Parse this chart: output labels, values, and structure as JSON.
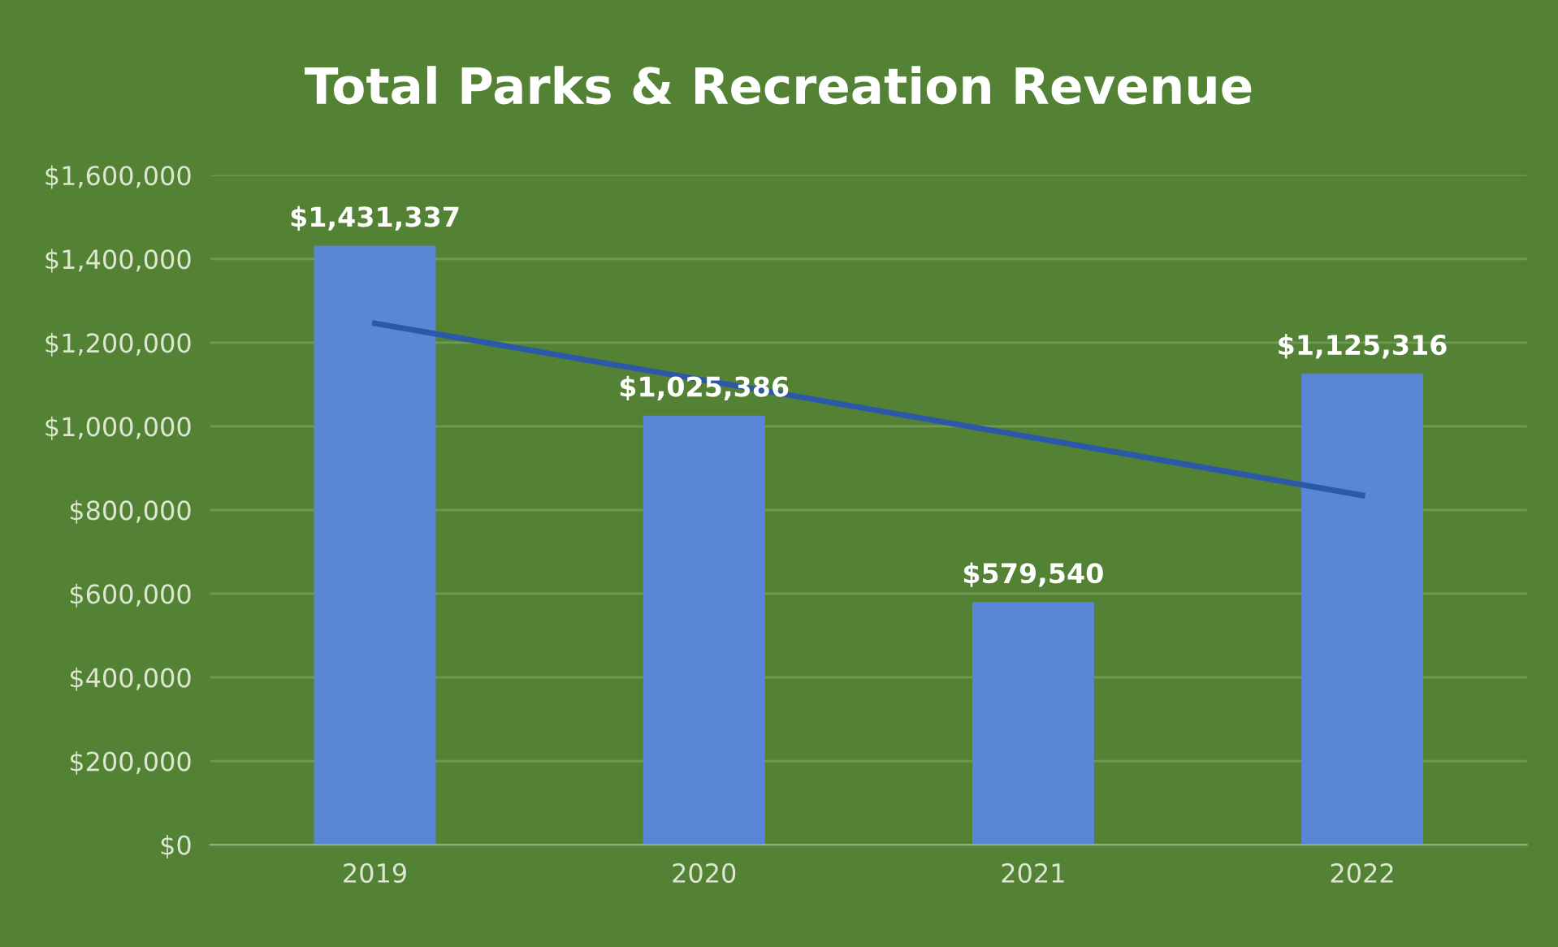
{
  "chart_data": {
    "type": "bar",
    "title": "Total Parks & Recreation Revenue",
    "categories": [
      "2019",
      "2020",
      "2021",
      "2022"
    ],
    "series": [
      {
        "color": "#5a86d8",
        "values": [
          1431337,
          1025386,
          579540,
          1125316
        ],
        "value_labels": [
          "$1,431,337",
          "$1,025,386",
          "$579,540",
          "$1,125,316"
        ]
      },
      {
        "type": "line",
        "color": "#2b58a8",
        "values": [
          1246000,
          1110000,
          973000,
          835000
        ]
      }
    ],
    "ylim": [
      0,
      1600000
    ],
    "yticks": [
      {
        "value": 0,
        "label": "$0"
      },
      {
        "value": 200000,
        "label": "$200,000"
      },
      {
        "value": 400000,
        "label": "$400,000"
      },
      {
        "value": 600000,
        "label": "$600,000"
      },
      {
        "value": 800000,
        "label": "$800,000"
      },
      {
        "value": 1000000,
        "label": "$1,000,000"
      },
      {
        "value": 1200000,
        "label": "$1,200,000"
      },
      {
        "value": 1400000,
        "label": "$1,400,000"
      },
      {
        "value": 1600000,
        "label": "$1,600,000"
      }
    ],
    "grid": "y",
    "legend": false
  }
}
